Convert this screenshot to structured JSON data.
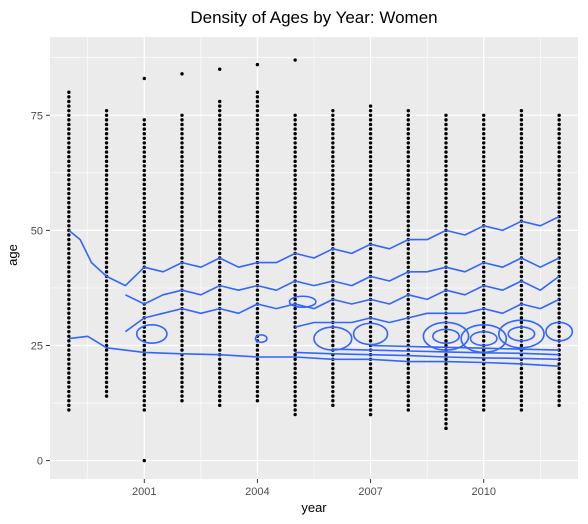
{
  "chart_data": {
    "type": "scatter",
    "title": "Density of Ages by Year: Women",
    "xlabel": "year",
    "ylabel": "age",
    "xlim": [
      1998.5,
      2012.5
    ],
    "ylim": [
      -4,
      92
    ],
    "x_ticks": [
      2001,
      2004,
      2007,
      2010
    ],
    "x_tick_labels": [
      "2001",
      "2004",
      "2007",
      "2010"
    ],
    "y_ticks": [
      0,
      25,
      50,
      75
    ],
    "y_tick_labels": [
      "0",
      "25",
      "50",
      "75"
    ],
    "grid": true,
    "background": "#ebebeb",
    "grid_major_color": "#ffffff",
    "point_color": "#000000",
    "density_line_color": "#3366ff",
    "points": {
      "x_years": [
        1999,
        2000,
        2001,
        2002,
        2003,
        2004,
        2005,
        2006,
        2007,
        2008,
        2009,
        2010,
        2011,
        2012
      ],
      "age_min": [
        11,
        14,
        11,
        13,
        12,
        13,
        10,
        12,
        10,
        11,
        7,
        11,
        11,
        12
      ],
      "age_max": [
        80,
        76,
        74,
        75,
        78,
        80,
        75,
        76,
        77,
        76,
        75,
        75,
        76,
        75
      ],
      "outliers": [
        {
          "x": 2001,
          "y": 0
        },
        {
          "x": 2001,
          "y": 83
        },
        {
          "x": 2002,
          "y": 84
        },
        {
          "x": 2003,
          "y": 85
        },
        {
          "x": 2004,
          "y": 86
        },
        {
          "x": 2005,
          "y": 87
        },
        {
          "x": 2007,
          "y": 10
        },
        {
          "x": 2009,
          "y": 7
        }
      ]
    },
    "density_contours": [
      {
        "name": "contour-upper",
        "x": [
          1999,
          1999.3,
          1999.6,
          2000,
          2000.5,
          2001,
          2001.5,
          2002,
          2002.5,
          2003,
          2003.5,
          2004,
          2004.5,
          2005,
          2005.5,
          2006,
          2006.5,
          2007,
          2007.5,
          2008,
          2008.5,
          2009,
          2009.5,
          2010,
          2010.5,
          2011,
          2011.5,
          2012
        ],
        "y": [
          50,
          48,
          43,
          40,
          38,
          42,
          41,
          43,
          42,
          44,
          42,
          43,
          43,
          45,
          44,
          46,
          45,
          47,
          46,
          48,
          48,
          50,
          49,
          51,
          50,
          52,
          51,
          53
        ]
      },
      {
        "name": "contour-mid-upper",
        "x": [
          2000.5,
          2001,
          2001.5,
          2002,
          2002.5,
          2003,
          2003.5,
          2004,
          2004.5,
          2005,
          2005.5,
          2006,
          2006.5,
          2007,
          2007.5,
          2008,
          2008.5,
          2009,
          2009.5,
          2010,
          2010.5,
          2011,
          2011.5,
          2012
        ],
        "y": [
          36,
          34,
          36,
          37,
          36,
          38,
          37,
          38,
          37,
          39,
          38,
          39,
          38,
          40,
          39,
          41,
          41,
          42,
          41,
          43,
          42,
          44,
          42,
          44
        ]
      },
      {
        "name": "contour-mid",
        "x": [
          2000.5,
          2001,
          2001.5,
          2002,
          2002.5,
          2003,
          2003.5,
          2004,
          2004.5,
          2005,
          2005.5,
          2006,
          2006.5,
          2007,
          2007.5,
          2008,
          2008.5,
          2009,
          2009.5,
          2010,
          2010.5,
          2011,
          2011.5,
          2012
        ],
        "y": [
          28,
          31,
          32,
          33,
          32,
          33,
          32,
          34,
          33,
          34,
          33,
          35,
          34,
          35,
          34,
          36,
          35,
          37,
          36,
          38,
          37,
          39,
          37,
          40
        ]
      },
      {
        "name": "contour-lower-mid",
        "x": [
          2005,
          2005.5,
          2006,
          2006.5,
          2007,
          2007.5,
          2008,
          2008.5,
          2009,
          2009.5,
          2010,
          2010.5,
          2011,
          2011.5,
          2012
        ],
        "y": [
          29,
          30,
          30,
          30,
          31,
          30,
          31,
          32,
          32,
          32,
          33,
          32,
          34,
          33,
          35
        ]
      },
      {
        "name": "contour-low-1",
        "x": [
          1999,
          1999.5,
          2000,
          2001,
          2002,
          2003,
          2004,
          2005,
          2006,
          2007,
          2008,
          2009,
          2010,
          2011,
          2012
        ],
        "y": [
          26.5,
          27,
          24.5,
          23.5,
          23.2,
          23,
          22.5,
          22.5,
          22,
          22,
          21.5,
          21.5,
          21.3,
          21,
          20.5
        ]
      },
      {
        "name": "contour-low-2",
        "x": [
          2005,
          2006,
          2007,
          2008,
          2009,
          2010,
          2011,
          2012
        ],
        "y": [
          23.5,
          23.2,
          23,
          22.8,
          22.5,
          22.3,
          22.2,
          22
        ]
      },
      {
        "name": "contour-low-3",
        "x": [
          2006,
          2007,
          2008,
          2009,
          2010,
          2011,
          2012
        ],
        "y": [
          24.2,
          24,
          23.8,
          23.6,
          23.4,
          23.3,
          23
        ]
      },
      {
        "name": "contour-low-4",
        "x": [
          2007,
          2008,
          2009,
          2010,
          2011,
          2012
        ],
        "y": [
          25,
          24.8,
          24.6,
          24.4,
          24.2,
          24
        ]
      }
    ],
    "density_rings": [
      {
        "cx": 2001.2,
        "cy": 27.5,
        "rx": 0.4,
        "ry": 2.0
      },
      {
        "cx": 2004.1,
        "cy": 26.5,
        "rx": 0.15,
        "ry": 0.8
      },
      {
        "cx": 2005.2,
        "cy": 34.5,
        "rx": 0.35,
        "ry": 1.2
      },
      {
        "cx": 2006.0,
        "cy": 26.5,
        "rx": 0.5,
        "ry": 2.5
      },
      {
        "cx": 2007.0,
        "cy": 27.5,
        "rx": 0.45,
        "ry": 2.3
      },
      {
        "cx": 2009.0,
        "cy": 27,
        "rx": 0.35,
        "ry": 1.5
      },
      {
        "cx": 2009.0,
        "cy": 27,
        "rx": 0.6,
        "ry": 3.0
      },
      {
        "cx": 2010.0,
        "cy": 26.5,
        "rx": 0.35,
        "ry": 1.5
      },
      {
        "cx": 2010.0,
        "cy": 26.5,
        "rx": 0.6,
        "ry": 3.0
      },
      {
        "cx": 2011.0,
        "cy": 27.5,
        "rx": 0.35,
        "ry": 1.5
      },
      {
        "cx": 2011.0,
        "cy": 27.5,
        "rx": 0.6,
        "ry": 3.0
      },
      {
        "cx": 2012.0,
        "cy": 28,
        "rx": 0.35,
        "ry": 2.0
      }
    ]
  }
}
